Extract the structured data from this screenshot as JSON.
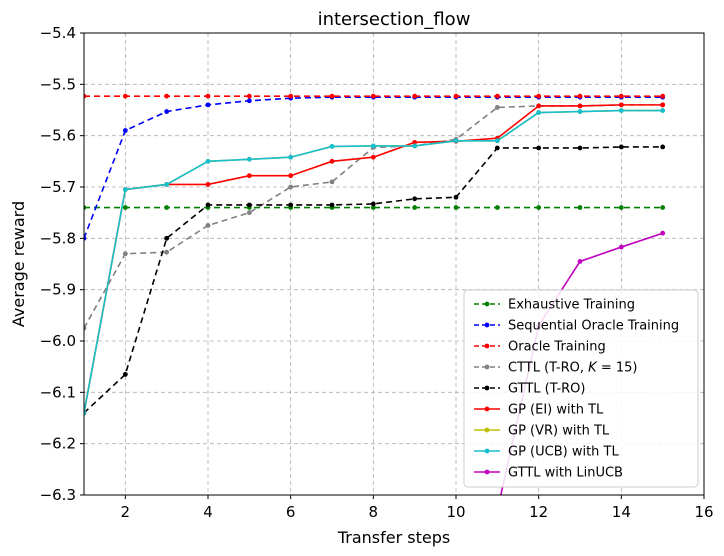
{
  "chart_data": {
    "type": "line",
    "title": "intersection_flow",
    "xlabel": "Transfer steps",
    "ylabel": "Average reward",
    "xlim": [
      1,
      16
    ],
    "ylim": [
      -6.3,
      -5.4
    ],
    "xticks": [
      "2",
      "4",
      "6",
      "8",
      "10",
      "12",
      "14",
      "16"
    ],
    "yticks": [
      "−5.4",
      "−5.5",
      "−5.6",
      "−5.7",
      "−5.8",
      "−5.9",
      "−6.0",
      "−6.1",
      "−6.2",
      "−6.3"
    ],
    "grid": true,
    "legend_position": "lower-right",
    "x": [
      1,
      2,
      3,
      4,
      5,
      6,
      7,
      8,
      9,
      10,
      11,
      12,
      13,
      14,
      15
    ],
    "series": [
      {
        "name": "Exhaustive Training",
        "color": "#008000",
        "dash": true,
        "values": [
          -5.74,
          -5.74,
          -5.74,
          -5.74,
          -5.74,
          -5.74,
          -5.74,
          -5.74,
          -5.74,
          -5.74,
          -5.74,
          -5.74,
          -5.74,
          -5.74,
          -5.74
        ]
      },
      {
        "name": "Sequential Oracle Training",
        "color": "#0000ff",
        "dash": true,
        "values": [
          -5.8,
          -5.59,
          -5.553,
          -5.54,
          -5.532,
          -5.527,
          -5.525,
          -5.525,
          -5.525,
          -5.525,
          -5.525,
          -5.525,
          -5.525,
          -5.525,
          -5.525
        ]
      },
      {
        "name": "Oracle Training",
        "color": "#ff0000",
        "dash": true,
        "values": [
          -5.523,
          -5.523,
          -5.523,
          -5.523,
          -5.523,
          -5.523,
          -5.523,
          -5.523,
          -5.523,
          -5.523,
          -5.523,
          -5.523,
          -5.523,
          -5.523,
          -5.523
        ]
      },
      {
        "name": "CTTL (T-RO, K = 15)",
        "label_main": "CTTL (T-RO, ",
        "label_k": "K",
        "label_tail": " = 15)",
        "color": "#808080",
        "dash": true,
        "values": [
          -5.975,
          -5.83,
          -5.827,
          -5.775,
          -5.75,
          -5.7,
          -5.69,
          -5.623,
          -5.62,
          -5.607,
          -5.545,
          -5.542,
          -5.542,
          -5.54,
          -5.54
        ]
      },
      {
        "name": "GTTL (T-RO)",
        "color": "#000000",
        "dash": true,
        "values": [
          -6.14,
          -6.065,
          -5.8,
          -5.735,
          -5.735,
          -5.735,
          -5.735,
          -5.733,
          -5.723,
          -5.72,
          -5.624,
          -5.624,
          -5.624,
          -5.622,
          -5.622
        ]
      },
      {
        "name": "GP (EI) with TL",
        "color": "#ff0000",
        "dash": false,
        "values": [
          -6.14,
          -5.705,
          -5.695,
          -5.695,
          -5.678,
          -5.678,
          -5.65,
          -5.642,
          -5.613,
          -5.611,
          -5.605,
          -5.542,
          -5.542,
          -5.54,
          -5.54
        ]
      },
      {
        "name": "GP (VR) with TL",
        "color": "#bfbf00",
        "dash": false,
        "values": [
          -6.14,
          -5.705,
          -5.695,
          -5.65,
          -5.646,
          -5.642,
          -5.621,
          -5.62,
          -5.62,
          -5.61,
          -5.61,
          -5.555,
          -5.553,
          -5.551,
          -5.551
        ]
      },
      {
        "name": "GP (UCB) with TL",
        "color": "#17becf",
        "dash": false,
        "values": [
          -6.14,
          -5.705,
          -5.695,
          -5.65,
          -5.646,
          -5.642,
          -5.621,
          -5.62,
          -5.62,
          -5.61,
          -5.61,
          -5.555,
          -5.553,
          -5.551,
          -5.551
        ]
      },
      {
        "name": "GTTL with LinUCB",
        "color": "#bf00bf",
        "dash": false,
        "values": [
          null,
          null,
          null,
          null,
          null,
          null,
          null,
          null,
          null,
          null,
          -6.33,
          -5.97,
          -5.845,
          -5.817,
          -5.79
        ]
      }
    ]
  }
}
